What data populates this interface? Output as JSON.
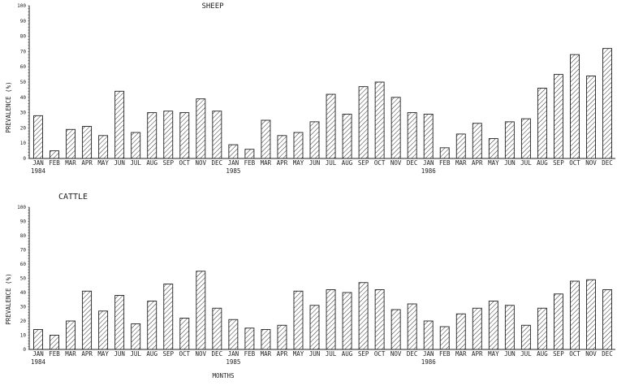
{
  "chart_data": [
    {
      "type": "bar",
      "title": "SHEEP",
      "ylabel": "PREVALENCE (%)",
      "xlabel": "",
      "ylim": [
        0,
        100
      ],
      "yticks": [
        0,
        10,
        20,
        30,
        40,
        50,
        60,
        70,
        80,
        90,
        100
      ],
      "categories": [
        "JAN",
        "FEB",
        "MAR",
        "APR",
        "MAY",
        "JUN",
        "JUL",
        "AUG",
        "SEP",
        "OCT",
        "NOV",
        "DEC",
        "JAN",
        "FEB",
        "MAR",
        "APR",
        "MAY",
        "JUN",
        "JUL",
        "AUG",
        "SEP",
        "OCT",
        "NOV",
        "DEC",
        "JAN",
        "FEB",
        "MAR",
        "APR",
        "MAY",
        "JUN",
        "JUL",
        "AUG",
        "SEP",
        "OCT",
        "NOV",
        "DEC"
      ],
      "year_labels": [
        "1984",
        "1985",
        "1986"
      ],
      "values": [
        28,
        5,
        19,
        21,
        15,
        44,
        17,
        30,
        31,
        30,
        39,
        31,
        9,
        6,
        25,
        15,
        17,
        24,
        42,
        29,
        47,
        50,
        40,
        30,
        29,
        7,
        16,
        23,
        13,
        24,
        26,
        46,
        55,
        68,
        54,
        72
      ],
      "fill": "hatched",
      "color": "#222222"
    },
    {
      "type": "bar",
      "title": "CATTLE",
      "ylabel": "PREVALENCE (%)",
      "xlabel": "MONTHS",
      "ylim": [
        0,
        100
      ],
      "yticks": [
        0,
        10,
        20,
        30,
        40,
        50,
        60,
        70,
        80,
        90,
        100
      ],
      "categories": [
        "JAN",
        "FEB",
        "MAR",
        "APR",
        "MAY",
        "JUN",
        "JUL",
        "AUG",
        "SEP",
        "OCT",
        "NOV",
        "DEC",
        "JAN",
        "FEB",
        "MAR",
        "APR",
        "MAY",
        "JUN",
        "JUL",
        "AUG",
        "SEP",
        "OCT",
        "NOV",
        "DEC",
        "JAN",
        "FEB",
        "MAR",
        "APR",
        "MAY",
        "JUN",
        "JUL",
        "AUG",
        "SEP",
        "OCT",
        "NOV",
        "DEC"
      ],
      "year_labels": [
        "1984",
        "1985",
        "1986"
      ],
      "values": [
        14,
        10,
        20,
        41,
        27,
        38,
        18,
        34,
        46,
        22,
        55,
        29,
        21,
        15,
        14,
        17,
        41,
        31,
        42,
        40,
        47,
        42,
        28,
        32,
        20,
        16,
        25,
        29,
        34,
        31,
        17,
        29,
        39,
        48,
        49,
        42
      ],
      "fill": "hatched",
      "color": "#222222"
    }
  ]
}
